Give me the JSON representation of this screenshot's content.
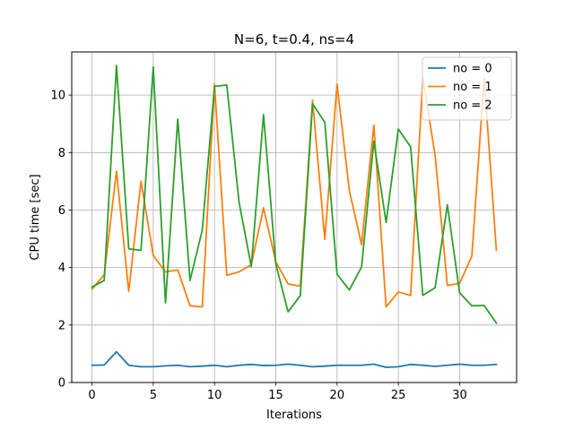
{
  "chart_data": {
    "type": "line",
    "title": "N=6, t=0.4, ns=4",
    "xlabel": "Iterations",
    "ylabel": "CPU time [sec]",
    "xlim": [
      -1.65,
      34.65
    ],
    "ylim": [
      0,
      11.5
    ],
    "xticks": [
      0,
      5,
      10,
      15,
      20,
      25,
      30
    ],
    "yticks": [
      0,
      2,
      4,
      6,
      8,
      10
    ],
    "grid": true,
    "legend_position": "top-right",
    "x": [
      0,
      1,
      2,
      3,
      4,
      5,
      6,
      7,
      8,
      9,
      10,
      11,
      12,
      13,
      14,
      15,
      16,
      17,
      18,
      19,
      20,
      21,
      22,
      23,
      24,
      25,
      26,
      27,
      28,
      29,
      30,
      31,
      32,
      33
    ],
    "series": [
      {
        "name": "no = 0",
        "color": "#1f77b4",
        "values": [
          0.6,
          0.61,
          1.07,
          0.6,
          0.55,
          0.55,
          0.58,
          0.6,
          0.55,
          0.57,
          0.6,
          0.55,
          0.6,
          0.63,
          0.59,
          0.6,
          0.64,
          0.6,
          0.55,
          0.57,
          0.6,
          0.6,
          0.6,
          0.64,
          0.53,
          0.55,
          0.63,
          0.6,
          0.56,
          0.6,
          0.64,
          0.6,
          0.6,
          0.63
        ]
      },
      {
        "name": "no = 1",
        "color": "#ff7f0e",
        "values": [
          3.25,
          3.75,
          7.35,
          3.17,
          7.0,
          4.42,
          3.85,
          3.92,
          2.67,
          2.63,
          10.38,
          3.73,
          3.85,
          4.1,
          6.08,
          4.2,
          3.43,
          3.35,
          9.82,
          4.98,
          10.38,
          6.68,
          4.8,
          8.95,
          2.63,
          3.15,
          3.03,
          10.6,
          7.9,
          3.38,
          3.45,
          4.4,
          10.58,
          4.6
        ]
      },
      {
        "name": "no = 2",
        "color": "#2ca02c",
        "values": [
          3.32,
          3.55,
          11.03,
          4.65,
          4.6,
          10.98,
          2.77,
          9.16,
          3.55,
          5.3,
          10.3,
          10.35,
          6.28,
          4.03,
          9.32,
          4.13,
          2.46,
          3.02,
          9.7,
          9.05,
          3.77,
          3.22,
          4.02,
          8.4,
          5.57,
          8.82,
          8.2,
          3.03,
          3.3,
          6.18,
          3.12,
          2.67,
          2.68,
          2.07
        ]
      }
    ]
  }
}
